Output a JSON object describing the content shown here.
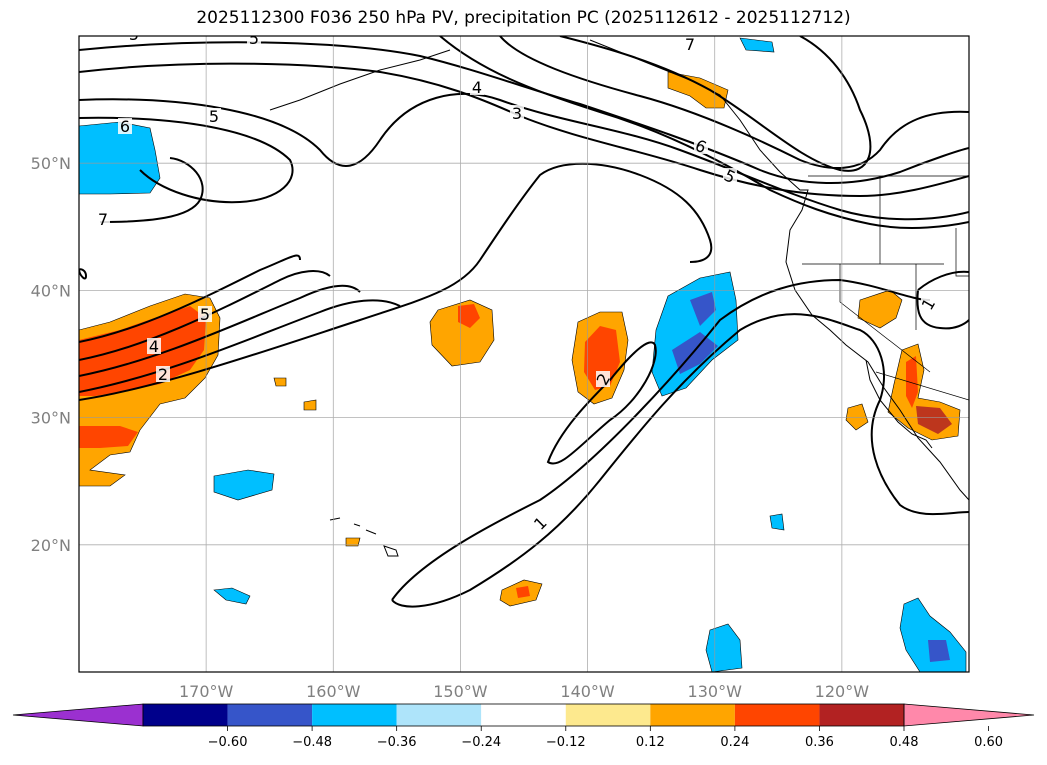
{
  "title": "2025112300 F036 250 hPa PV, precipitation PC (2025112612 - 2025112712)",
  "map": {
    "lon_range": [
      -180,
      -110
    ],
    "lat_range": [
      10,
      60
    ],
    "lon_ticks": [
      {
        "value": -170,
        "label": "170°W"
      },
      {
        "value": -160,
        "label": "160°W"
      },
      {
        "value": -150,
        "label": "150°W"
      },
      {
        "value": -140,
        "label": "140°W"
      },
      {
        "value": -130,
        "label": "130°W"
      },
      {
        "value": -120,
        "label": "120°W"
      }
    ],
    "lat_ticks": [
      {
        "value": 50,
        "label": "50°N"
      },
      {
        "value": 40,
        "label": "40°N"
      },
      {
        "value": 30,
        "label": "30°N"
      },
      {
        "value": 20,
        "label": "20°N"
      }
    ],
    "gridlines": true,
    "contour_labels": [
      "1",
      "2",
      "3",
      "4",
      "5",
      "6",
      "7"
    ]
  },
  "colorbar": {
    "ticks": [
      "−0.60",
      "−0.48",
      "−0.36",
      "−0.24",
      "−0.12",
      "0.12",
      "0.24",
      "0.36",
      "0.48",
      "0.60"
    ],
    "colors": [
      "#9b30d0",
      "#00008b",
      "#3655c9",
      "#00bfff",
      "#aee4fa",
      "#ffffff",
      "#fde98e",
      "#ffa500",
      "#ff4500",
      "#b22222",
      "#ff88aa"
    ]
  }
}
